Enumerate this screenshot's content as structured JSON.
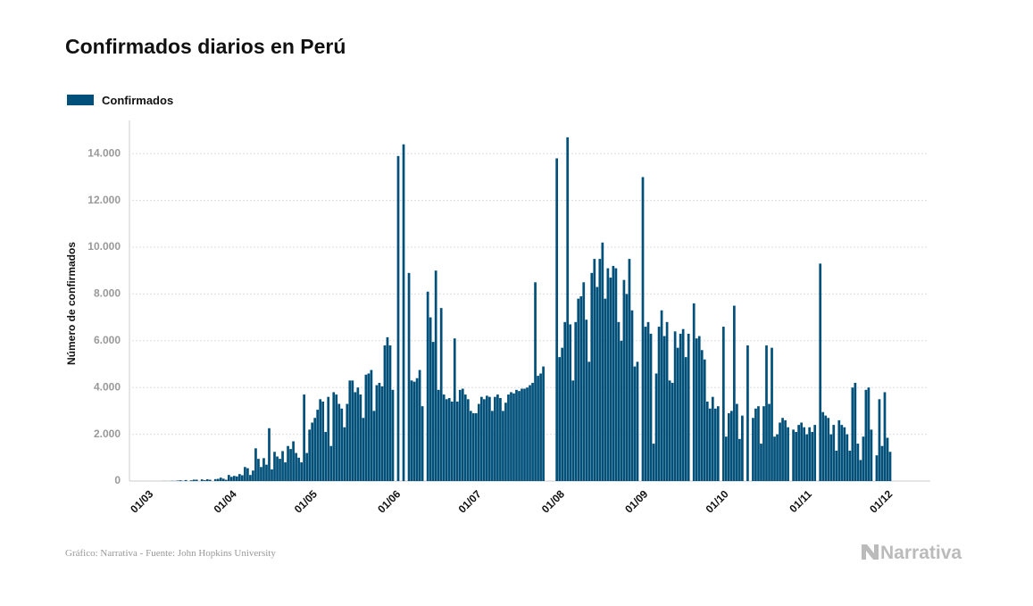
{
  "chart_data": {
    "type": "bar",
    "title": "Confirmados diarios en Perú",
    "y_label": "Número de confirmados",
    "source": "Gráfico: Narrativa - Fuente: John Hopkins University",
    "logo": "Narrativa",
    "categories": [
      "01/03",
      null,
      null,
      null,
      null,
      null,
      null,
      null,
      null,
      null,
      null,
      null,
      null,
      null,
      null,
      null,
      null,
      null,
      null,
      null,
      null,
      null,
      null,
      null,
      null,
      null,
      null,
      null,
      null,
      null,
      null,
      "01/04",
      null,
      null,
      null,
      null,
      null,
      null,
      null,
      null,
      null,
      null,
      null,
      null,
      null,
      null,
      null,
      null,
      null,
      null,
      null,
      null,
      null,
      null,
      null,
      null,
      null,
      null,
      null,
      null,
      null,
      "01/05",
      null,
      null,
      null,
      null,
      null,
      null,
      null,
      null,
      null,
      null,
      null,
      null,
      null,
      null,
      null,
      null,
      null,
      null,
      null,
      null,
      null,
      null,
      null,
      null,
      null,
      null,
      null,
      null,
      null,
      null,
      "01/06",
      null,
      null,
      null,
      null,
      null,
      null,
      null,
      null,
      null,
      null,
      null,
      null,
      null,
      null,
      null,
      null,
      null,
      null,
      null,
      null,
      null,
      null,
      null,
      null,
      null,
      null,
      null,
      null,
      null,
      "01/07",
      null,
      null,
      null,
      null,
      null,
      null,
      null,
      null,
      null,
      null,
      null,
      null,
      null,
      null,
      null,
      null,
      null,
      null,
      null,
      null,
      null,
      null,
      null,
      null,
      null,
      null,
      null,
      null,
      null,
      null,
      "01/08",
      null,
      null,
      null,
      null,
      null,
      null,
      null,
      null,
      null,
      null,
      null,
      null,
      null,
      null,
      null,
      null,
      null,
      null,
      null,
      null,
      null,
      null,
      null,
      null,
      null,
      null,
      null,
      null,
      null,
      null,
      "01/09",
      null,
      null,
      null,
      null,
      null,
      null,
      null,
      null,
      null,
      null,
      null,
      null,
      null,
      null,
      null,
      null,
      null,
      null,
      null,
      null,
      null,
      null,
      null,
      null,
      null,
      null,
      null,
      null,
      null,
      "01/10",
      null,
      null,
      null,
      null,
      null,
      null,
      null,
      null,
      null,
      null,
      null,
      null,
      null,
      null,
      null,
      null,
      null,
      null,
      null,
      null,
      null,
      null,
      null,
      null,
      null,
      null,
      null,
      null,
      null,
      null,
      "01/11",
      null,
      null,
      null,
      null,
      null,
      null,
      null,
      null,
      null,
      null,
      null,
      null,
      null,
      null,
      null,
      null,
      null,
      null,
      null,
      null,
      null,
      null,
      null,
      null,
      null,
      null,
      null,
      null,
      null,
      "01/12",
      null
    ],
    "series": [
      {
        "name": "Confirmados",
        "color": "#00507a",
        "values": [
          0,
          0,
          0,
          0,
          0,
          1,
          5,
          2,
          4,
          9,
          6,
          20,
          33,
          7,
          43,
          0,
          31,
          60,
          59,
          0,
          71,
          35,
          77,
          55,
          0,
          82,
          95,
          145,
          101,
          55,
          260,
          181,
          222,
          200,
          300,
          250,
          600,
          550,
          260,
          450,
          1400,
          950,
          600,
          980,
          700,
          2260,
          500,
          1250,
          1050,
          950,
          1280,
          800,
          1500,
          1370,
          1700,
          1200,
          1000,
          800,
          3700,
          1200,
          2200,
          2500,
          2700,
          3050,
          3500,
          3400,
          2100,
          3600,
          1500,
          3800,
          3700,
          3300,
          3100,
          2300,
          3300,
          4300,
          4300,
          3800,
          4000,
          3700,
          2700,
          4550,
          4600,
          4750,
          3000,
          4100,
          4200,
          4050,
          5800,
          6150,
          5800,
          3900,
          0,
          13900,
          0,
          14400,
          0,
          8900,
          4300,
          4250,
          4400,
          4750,
          3200,
          0,
          8100,
          7000,
          5950,
          9000,
          3900,
          7400,
          3700,
          3500,
          3550,
          3400,
          6100,
          3400,
          3900,
          3950,
          3700,
          3500,
          3000,
          2900,
          2900,
          3300,
          3600,
          3500,
          3650,
          3600,
          3000,
          3600,
          3700,
          3550,
          3000,
          3350,
          3700,
          3800,
          3750,
          3900,
          3850,
          3950,
          3950,
          4000,
          4100,
          4200,
          8500,
          4500,
          4600,
          4900,
          0,
          0,
          0,
          0,
          13800,
          5300,
          5700,
          6800,
          14700,
          6700,
          4300,
          6800,
          7800,
          7900,
          8500,
          6900,
          5100,
          8900,
          9500,
          8300,
          9500,
          10200,
          7800,
          9100,
          8700,
          9200,
          9100,
          6800,
          6000,
          8600,
          8000,
          9500,
          7300,
          4900,
          5100,
          0,
          13000,
          6600,
          6800,
          6300,
          1600,
          4600,
          6600,
          7300,
          6200,
          6800,
          4300,
          4200,
          6400,
          5700,
          6300,
          6500,
          5300,
          6300,
          0,
          7600,
          6100,
          6200,
          5600,
          5200,
          3400,
          3100,
          3600,
          3100,
          3200,
          0,
          6600,
          1900,
          2900,
          3000,
          7500,
          3300,
          1800,
          2800,
          0,
          5800,
          0,
          2700,
          3100,
          3200,
          1600,
          3200,
          5800,
          3300,
          5700,
          1900,
          2000,
          2500,
          2700,
          2600,
          2300,
          0,
          2200,
          2100,
          2400,
          2500,
          2300,
          2000,
          2300,
          2100,
          2400,
          0,
          9300,
          2950,
          2800,
          2700,
          2000,
          2400,
          1300,
          2600,
          2400,
          2300,
          2000,
          1300,
          4000,
          4200,
          1600,
          900,
          1900,
          3900,
          4000,
          2200,
          0,
          1100,
          3500,
          1500,
          3800,
          1850,
          1250
        ]
      }
    ],
    "ylim": [
      0,
      15000
    ],
    "yticks": [
      0,
      {
        "value": 2000,
        "label": "2.000"
      },
      {
        "value": 4000,
        "label": "4.000"
      },
      {
        "value": 6000,
        "label": "6.000"
      },
      {
        "value": 8000,
        "label": "8.000"
      },
      {
        "value": 10000,
        "label": "10.000"
      },
      {
        "value": 12000,
        "label": "12.000"
      },
      {
        "value": 14000,
        "label": "14.000"
      }
    ],
    "grid": true
  }
}
